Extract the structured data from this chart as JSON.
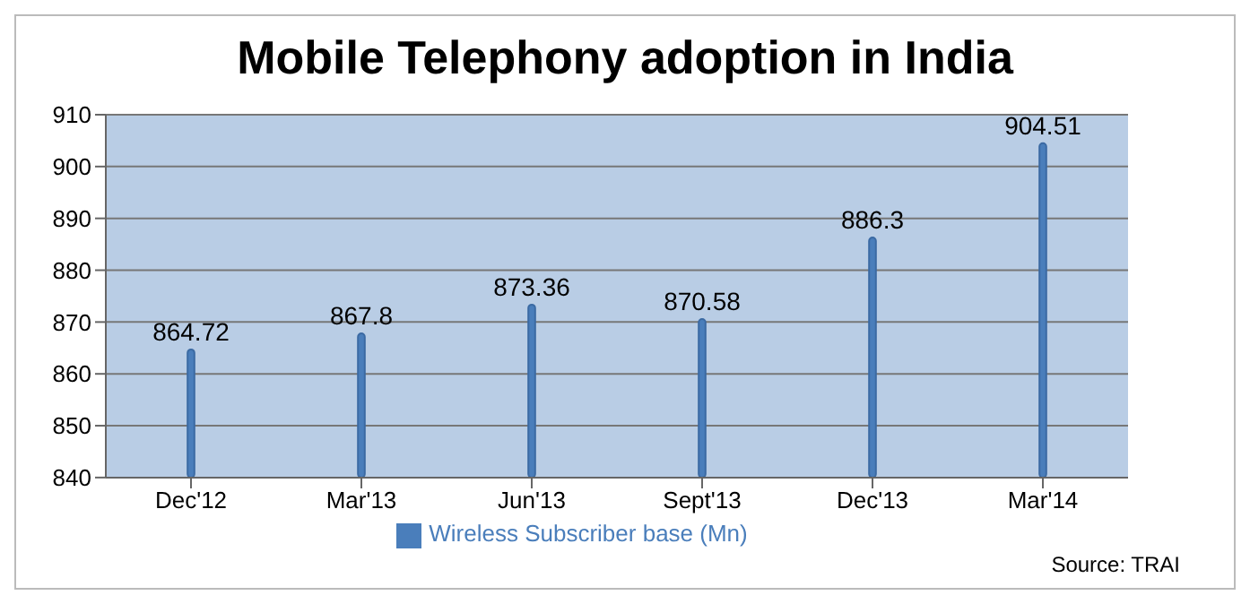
{
  "chart_data": {
    "type": "bar",
    "title": "Mobile Telephony adoption in India",
    "categories": [
      "Dec'12",
      "Mar'13",
      "Jun'13",
      "Sept'13",
      "Dec'13",
      "Mar'14"
    ],
    "series": [
      {
        "name": "Wireless Subscriber base (Mn)",
        "color": "#4a7ebb",
        "values": [
          864.72,
          867.8,
          873.36,
          870.58,
          886.3,
          904.51
        ]
      }
    ],
    "ylim": [
      840,
      910
    ],
    "yticks": [
      840,
      850,
      860,
      870,
      880,
      890,
      900,
      910
    ],
    "grid": "y",
    "legend": "bottom",
    "data_labels": true,
    "annotations": [
      "Source: TRAI"
    ]
  }
}
